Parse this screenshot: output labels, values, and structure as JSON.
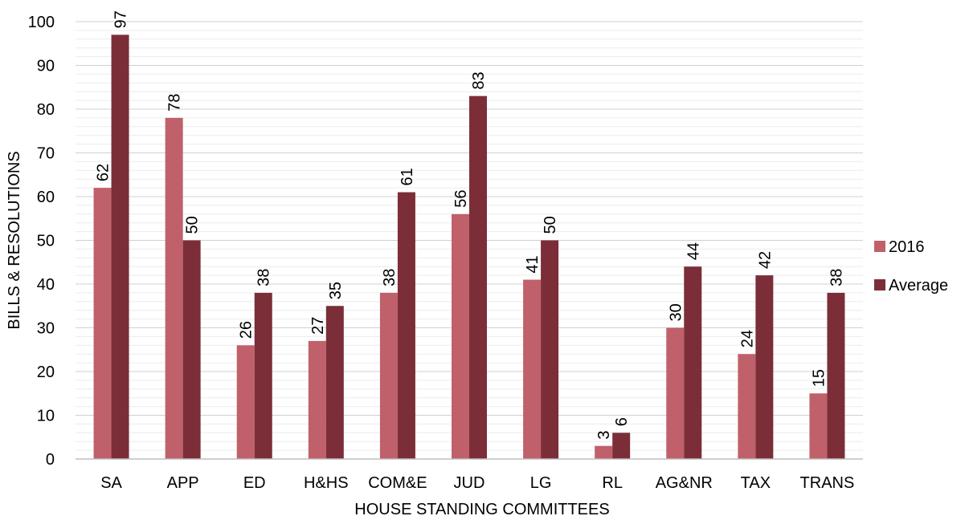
{
  "chart_data": {
    "type": "bar",
    "title": "",
    "xlabel": "HOUSE STANDING COMMITTEES",
    "ylabel": "BILLS & RESOLUTIONS",
    "ylim": [
      0,
      100
    ],
    "yticks": [
      0,
      10,
      20,
      30,
      40,
      50,
      60,
      70,
      80,
      90,
      100
    ],
    "grid": true,
    "legend_position": "right",
    "categories": [
      "SA",
      "APP",
      "ED",
      "H&HS",
      "COM&E",
      "JUD",
      "LG",
      "RL",
      "AG&NR",
      "TAX",
      "TRANS"
    ],
    "series": [
      {
        "name": "2016",
        "color": "#c0606a",
        "values": [
          62,
          78,
          26,
          27,
          38,
          56,
          41,
          3,
          30,
          24,
          15
        ]
      },
      {
        "name": "Average",
        "color": "#7b2e38",
        "values": [
          97,
          50,
          38,
          35,
          61,
          83,
          50,
          6,
          44,
          42,
          38
        ]
      }
    ]
  }
}
